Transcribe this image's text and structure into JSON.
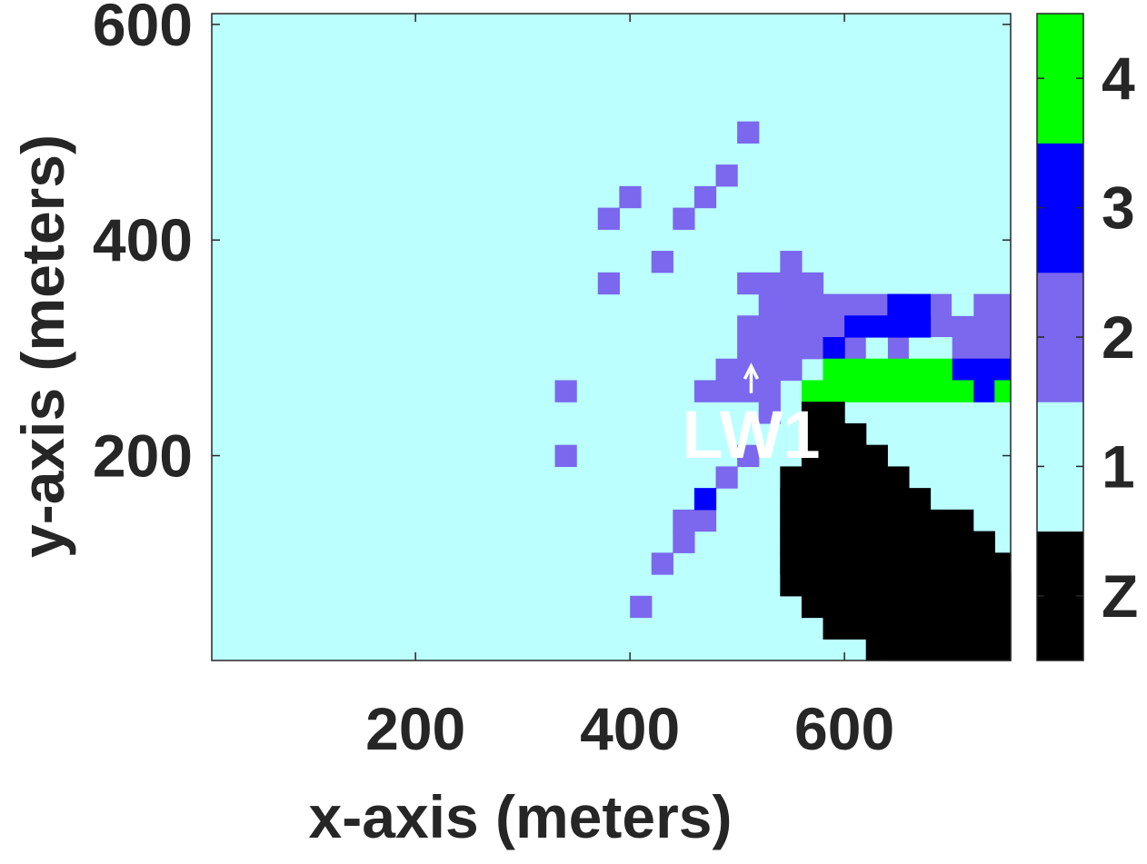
{
  "chart_data": {
    "type": "heatmap",
    "xlabel": "x-axis (meters)",
    "ylabel": "y-axis (meters)",
    "xlim": [
      10,
      755
    ],
    "ylim": [
      10,
      610
    ],
    "xticks": [
      200,
      400,
      600
    ],
    "yticks": [
      200,
      400,
      600
    ],
    "cell_size": 20,
    "background_class": "1",
    "colorbar": {
      "labels": [
        "Z",
        "1",
        "2",
        "3",
        "4"
      ],
      "colors": [
        "#000000",
        "#bbffff",
        "#7b68ee",
        "#0000ff",
        "#00ff00"
      ]
    },
    "annotation": {
      "text": "LW1",
      "color": "#ffffff",
      "arrow_x": 513,
      "arrow_tip_y": 283,
      "arrow_tail_y": 258,
      "text_x": 513,
      "text_y": 218
    },
    "cells": [
      {
        "value": "2",
        "x0": 500,
        "x1": 520,
        "y0": 490,
        "y1": 510
      },
      {
        "value": "2",
        "x0": 480,
        "x1": 500,
        "y0": 450,
        "y1": 470
      },
      {
        "value": "2",
        "x0": 390,
        "x1": 410,
        "y0": 430,
        "y1": 450
      },
      {
        "value": "2",
        "x0": 460,
        "x1": 480,
        "y0": 430,
        "y1": 450
      },
      {
        "value": "2",
        "x0": 370,
        "x1": 390,
        "y0": 410,
        "y1": 430
      },
      {
        "value": "2",
        "x0": 440,
        "x1": 460,
        "y0": 410,
        "y1": 430
      },
      {
        "value": "2",
        "x0": 420,
        "x1": 440,
        "y0": 370,
        "y1": 390
      },
      {
        "value": "2",
        "x0": 540,
        "x1": 560,
        "y0": 370,
        "y1": 390
      },
      {
        "value": "2",
        "x0": 370,
        "x1": 390,
        "y0": 350,
        "y1": 370
      },
      {
        "value": "2",
        "x0": 500,
        "x1": 580,
        "y0": 350,
        "y1": 370
      },
      {
        "value": "2",
        "x0": 520,
        "x1": 755,
        "y0": 330,
        "y1": 350
      },
      {
        "value": "2",
        "x0": 500,
        "x1": 755,
        "y0": 290,
        "y1": 330
      },
      {
        "value": "2",
        "x0": 480,
        "x1": 560,
        "y0": 270,
        "y1": 290
      },
      {
        "value": "2",
        "x0": 460,
        "x1": 540,
        "y0": 250,
        "y1": 270
      },
      {
        "value": "2",
        "x0": 520,
        "x1": 540,
        "y0": 230,
        "y1": 250
      },
      {
        "value": "2",
        "x0": 330,
        "x1": 350,
        "y0": 250,
        "y1": 270
      },
      {
        "value": "2",
        "x0": 330,
        "x1": 350,
        "y0": 190,
        "y1": 210
      },
      {
        "value": "2",
        "x0": 500,
        "x1": 520,
        "y0": 190,
        "y1": 210
      },
      {
        "value": "2",
        "x0": 480,
        "x1": 500,
        "y0": 170,
        "y1": 190
      },
      {
        "value": "2",
        "x0": 440,
        "x1": 480,
        "y0": 130,
        "y1": 150
      },
      {
        "value": "2",
        "x0": 440,
        "x1": 460,
        "y0": 110,
        "y1": 130
      },
      {
        "value": "2",
        "x0": 420,
        "x1": 440,
        "y0": 90,
        "y1": 110
      },
      {
        "value": "2",
        "x0": 400,
        "x1": 420,
        "y0": 50,
        "y1": 70
      },
      {
        "value": "1",
        "x0": 660,
        "x1": 680,
        "y0": 330,
        "y1": 350
      },
      {
        "value": "1",
        "x0": 700,
        "x1": 720,
        "y0": 330,
        "y1": 350
      },
      {
        "value": "1",
        "x0": 620,
        "x1": 640,
        "y0": 290,
        "y1": 310
      },
      {
        "value": "1",
        "x0": 660,
        "x1": 700,
        "y0": 290,
        "y1": 310
      },
      {
        "value": "3",
        "x0": 640,
        "x1": 680,
        "y0": 330,
        "y1": 350
      },
      {
        "value": "3",
        "x0": 600,
        "x1": 680,
        "y0": 310,
        "y1": 330
      },
      {
        "value": "3",
        "x0": 580,
        "x1": 600,
        "y0": 290,
        "y1": 310
      },
      {
        "value": "3",
        "x0": 700,
        "x1": 755,
        "y0": 270,
        "y1": 290
      },
      {
        "value": "3",
        "x0": 720,
        "x1": 740,
        "y0": 250,
        "y1": 270
      },
      {
        "value": "3",
        "x0": 460,
        "x1": 480,
        "y0": 150,
        "y1": 170
      },
      {
        "value": "4",
        "x0": 580,
        "x1": 700,
        "y0": 270,
        "y1": 290
      },
      {
        "value": "4",
        "x0": 560,
        "x1": 720,
        "y0": 250,
        "y1": 270
      },
      {
        "value": "4",
        "x0": 740,
        "x1": 755,
        "y0": 250,
        "y1": 270
      },
      {
        "value": "Z",
        "x0": 560,
        "x1": 580,
        "y0": 190,
        "y1": 250
      },
      {
        "value": "Z",
        "x0": 580,
        "x1": 600,
        "y0": 210,
        "y1": 250
      },
      {
        "value": "Z",
        "x0": 580,
        "x1": 620,
        "y0": 190,
        "y1": 230
      },
      {
        "value": "Z",
        "x0": 580,
        "x1": 640,
        "y0": 170,
        "y1": 210
      },
      {
        "value": "Z",
        "x0": 540,
        "x1": 660,
        "y0": 150,
        "y1": 190
      },
      {
        "value": "Z",
        "x0": 540,
        "x1": 680,
        "y0": 130,
        "y1": 170
      },
      {
        "value": "Z",
        "x0": 540,
        "x1": 720,
        "y0": 110,
        "y1": 150
      },
      {
        "value": "Z",
        "x0": 540,
        "x1": 740,
        "y0": 90,
        "y1": 130
      },
      {
        "value": "Z",
        "x0": 540,
        "x1": 755,
        "y0": 70,
        "y1": 110
      },
      {
        "value": "Z",
        "x0": 560,
        "x1": 755,
        "y0": 50,
        "y1": 90
      },
      {
        "value": "Z",
        "x0": 580,
        "x1": 755,
        "y0": 30,
        "y1": 70
      },
      {
        "value": "Z",
        "x0": 620,
        "x1": 755,
        "y0": 10,
        "y1": 50
      },
      {
        "value": "Z",
        "x0": 640,
        "x1": 755,
        "y0": 10,
        "y1": 30
      }
    ]
  }
}
